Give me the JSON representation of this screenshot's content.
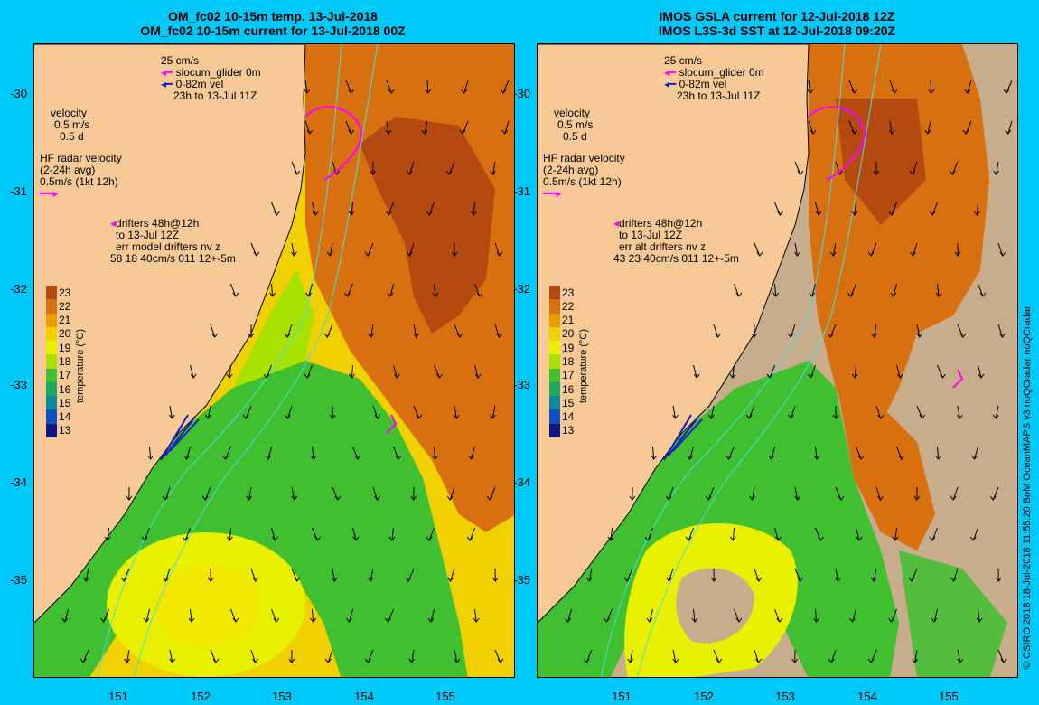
{
  "left_panel": {
    "title_line1": "OM_fc02 10-15m temp. 13-Jul-2018",
    "title_line2": "OM_fc02 10-15m current for 13-Jul-2018 00Z",
    "legend": {
      "scale": "25 cm/s",
      "glider": "slocum_glider 0m",
      "vel_range": "0-82m vel",
      "time_window": "23h to 13-Jul 11Z",
      "velocity_title": "velocity",
      "velocity_scale1": "0.5 m/s",
      "velocity_scale2": "0.5 d",
      "hf_title": "HF radar velocity",
      "hf_avg": "(2-24h avg)",
      "hf_scale": "0.5m/s (1kt 12h)",
      "drifters": "drifters 48h@12h",
      "drifters_to": "to 13-Jul 12Z",
      "err_title": "err model drifters nv z",
      "err_values": "58 18 40cm/s 011 12+-5m"
    }
  },
  "right_panel": {
    "title_line1": "IMOS GSLA current for 12-Jul-2018 12Z",
    "title_line2": "IMOS L3S-3d SST at 12-Jul-2018 09:20Z",
    "legend": {
      "scale": "25 cm/s",
      "glider": "slocum_glider 0m",
      "vel_range": "0-82m vel",
      "time_window": "23h to 13-Jul 11Z",
      "velocity_title": "velocity",
      "velocity_scale1": "0.5 m/s",
      "velocity_scale2": "0.5 d",
      "hf_title": "HF radar velocity",
      "hf_avg": "(2-24h avg)",
      "hf_scale": "0.5m/s (1kt 12h)",
      "drifters": "drifters 48h@12h",
      "drifters_to": "to 13-Jul 12Z",
      "err_title": "err alt drifters nv z",
      "err_values": "43 23 40cm/s 011 12+-5m"
    }
  },
  "axes": {
    "lat_ticks": [
      "-30",
      "-31",
      "-32",
      "-33",
      "-34",
      "-35"
    ],
    "lon_ticks": [
      "151",
      "152",
      "153",
      "154",
      "155"
    ]
  },
  "colorbar": {
    "label": "temperature (°C)",
    "ticks": [
      "23",
      "22",
      "21",
      "20",
      "19",
      "18",
      "17",
      "16",
      "15",
      "14",
      "13"
    ],
    "colors": [
      "#b54a10",
      "#d87010",
      "#e8a000",
      "#f0d000",
      "#e8f000",
      "#a8e000",
      "#40c030",
      "#20a860",
      "#1088a0",
      "#1050c0",
      "#101880"
    ]
  },
  "colors": {
    "land": "#f7c996",
    "frame": "#00c8f8",
    "glider": "#ff00ff",
    "velocity": "#1020c0",
    "no_data": "#c8ad8c"
  },
  "credit": "© CSIRO 2018  18-Jul-2018 11:55:20 BoM OceanMAPS v3 noQCradar noQCradar"
}
